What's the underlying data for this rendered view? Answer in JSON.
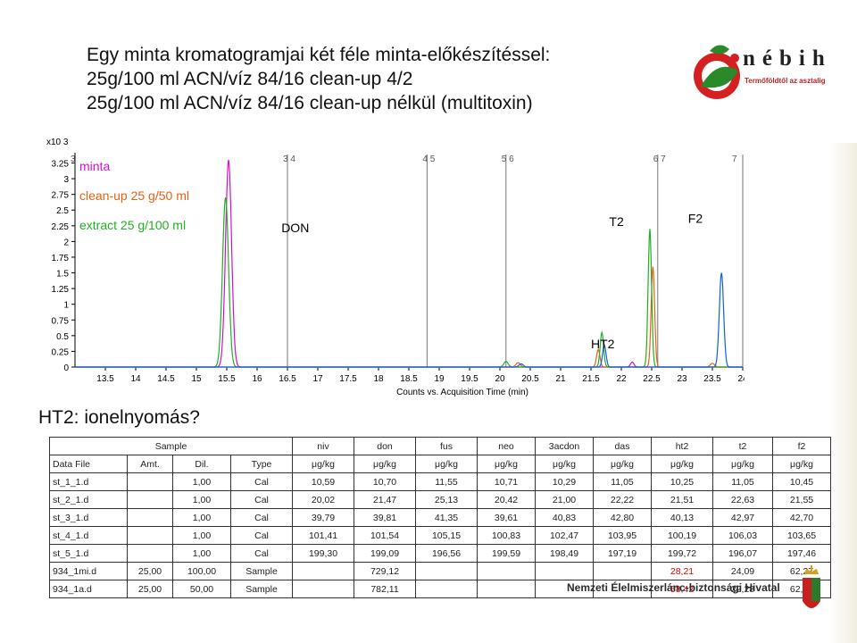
{
  "slide": {
    "title_lines": [
      "Egy minta kromatogramjai két féle minta-előkészítéssel:",
      "25g/100 ml  ACN/víz 84/16 clean-up 4/2",
      "25g/100 ml  ACN/víz 84/16 clean-up nélkül (multitoxin)"
    ],
    "question": "HT2: ionelnyomás?",
    "footer": "Nemzeti Élelmiszerlánc-biztonsági Hivatal",
    "logo_name": "nébih",
    "logo_tagline": "Termőföldtől az asztalig"
  },
  "colors": {
    "minta": "#d010d0",
    "cleanup": "#e86010",
    "extract": "#20b020",
    "blue": "#1060e0",
    "axis": "#000000",
    "grid": "#777777",
    "panel": "#ffffff"
  },
  "chart_data": {
    "type": "line",
    "title": "",
    "xlabel": "Counts vs. Acquisition Time (min)",
    "ylabel": "",
    "y_multiplier": "x10 3",
    "xlim": [
      13.0,
      24.0
    ],
    "ylim": [
      0,
      3.3
    ],
    "x_ticks": [
      "13.5",
      "14",
      "14.5",
      "15",
      "15.5",
      "16",
      "16.5",
      "17",
      "17.5",
      "18",
      "18.5",
      "19",
      "19.5",
      "20",
      "20.5",
      "21",
      "21.5",
      "22",
      "22.5",
      "23",
      "23.5",
      "24"
    ],
    "y_ticks": [
      "0",
      "0.25",
      "0.5",
      "0.75",
      "1",
      "1.25",
      "1.5",
      "1.75",
      "2",
      "2.25",
      "2.5",
      "2.75",
      "3",
      "3.25"
    ],
    "segment_markers": [
      {
        "x": 13.0,
        "label": "3"
      },
      {
        "x": 16.5,
        "label": "3 4"
      },
      {
        "x": 18.8,
        "label": "4 5"
      },
      {
        "x": 20.1,
        "label": "5 6"
      },
      {
        "x": 22.6,
        "label": "6 7"
      },
      {
        "x": 24.0,
        "label": "7"
      }
    ],
    "legend": [
      {
        "label": "minta",
        "series": "minta"
      },
      {
        "label": "clean-up 25 g/50 ml",
        "series": "cleanup"
      },
      {
        "label": "extract 25 g/100 ml",
        "series": "extract"
      }
    ],
    "peak_labels": [
      {
        "text": "DON",
        "x": 16.4,
        "y": 2.15
      },
      {
        "text": "T2",
        "x": 21.8,
        "y": 2.25
      },
      {
        "text": "F2",
        "x": 23.1,
        "y": 2.3
      },
      {
        "text": "HT2",
        "x": 21.5,
        "y": 0.3
      }
    ],
    "series": [
      {
        "key": "minta",
        "color_key": "minta",
        "peaks": [
          {
            "x": 15.53,
            "h": 3.3,
            "w": 0.07
          },
          {
            "x": 22.18,
            "h": 0.08,
            "w": 0.04
          }
        ]
      },
      {
        "key": "cleanup",
        "color_key": "cleanup",
        "peaks": [
          {
            "x": 21.62,
            "h": 0.28,
            "w": 0.04
          },
          {
            "x": 22.52,
            "h": 1.6,
            "w": 0.04
          },
          {
            "x": 20.3,
            "h": 0.07,
            "w": 0.05
          },
          {
            "x": 23.5,
            "h": 0.06,
            "w": 0.05
          }
        ]
      },
      {
        "key": "extract",
        "color_key": "extract",
        "peaks": [
          {
            "x": 15.48,
            "h": 2.7,
            "w": 0.07
          },
          {
            "x": 21.68,
            "h": 0.55,
            "w": 0.04
          },
          {
            "x": 22.47,
            "h": 2.2,
            "w": 0.04
          },
          {
            "x": 20.1,
            "h": 0.09,
            "w": 0.05
          }
        ]
      },
      {
        "key": "blue",
        "color_key": "blue",
        "peaks": [
          {
            "x": 21.72,
            "h": 0.35,
            "w": 0.04
          },
          {
            "x": 23.65,
            "h": 1.5,
            "w": 0.05
          },
          {
            "x": 20.35,
            "h": 0.05,
            "w": 0.05
          }
        ]
      }
    ]
  },
  "table": {
    "rows": [
      [
        "",
        "",
        "",
        "",
        "niv",
        "don",
        "fus",
        "neo",
        "3acdon",
        "das",
        "ht2",
        "t2",
        "f2"
      ],
      [
        "Data File",
        "Amt.",
        "Dil.",
        "Type",
        "μg/kg",
        "μg/kg",
        "μg/kg",
        "μg/kg",
        "μg/kg",
        "μg/kg",
        "μg/kg",
        "μg/kg",
        "μg/kg"
      ],
      [
        "st_1_1.d",
        "",
        "1,00",
        "Cal",
        "10,59",
        "10,70",
        "11,55",
        "10,71",
        "10,29",
        "11,05",
        "10,25",
        "11,05",
        "10,45"
      ],
      [
        "st_2_1.d",
        "",
        "1,00",
        "Cal",
        "20,02",
        "21,47",
        "25,13",
        "20,42",
        "21,00",
        "22,22",
        "21,51",
        "22,63",
        "21,55"
      ],
      [
        "st_3_1.d",
        "",
        "1,00",
        "Cal",
        "39,79",
        "39,81",
        "41,35",
        "39,61",
        "40,83",
        "42,80",
        "40,13",
        "42,97",
        "42,70"
      ],
      [
        "st_4_1.d",
        "",
        "1,00",
        "Cal",
        "101,41",
        "101,54",
        "105,15",
        "100,83",
        "102,47",
        "103,95",
        "100,19",
        "106,03",
        "103,65"
      ],
      [
        "st_5_1.d",
        "",
        "1,00",
        "Cal",
        "199,30",
        "199,09",
        "196,56",
        "199,59",
        "198,49",
        "197,19",
        "199,72",
        "196,07",
        "197,46"
      ],
      [
        "934_1mi.d",
        "25,00",
        "100,00",
        "Sample",
        "",
        "729,12",
        "",
        "",
        "",
        "",
        "28,21",
        "24,09",
        "62,27"
      ],
      [
        "934_1a.d",
        "25,00",
        "50,00",
        "Sample",
        "",
        "782,11",
        "",
        "",
        "",
        "",
        "58,42",
        "22,28",
        "62,08"
      ]
    ],
    "sample_header": "Sample"
  }
}
